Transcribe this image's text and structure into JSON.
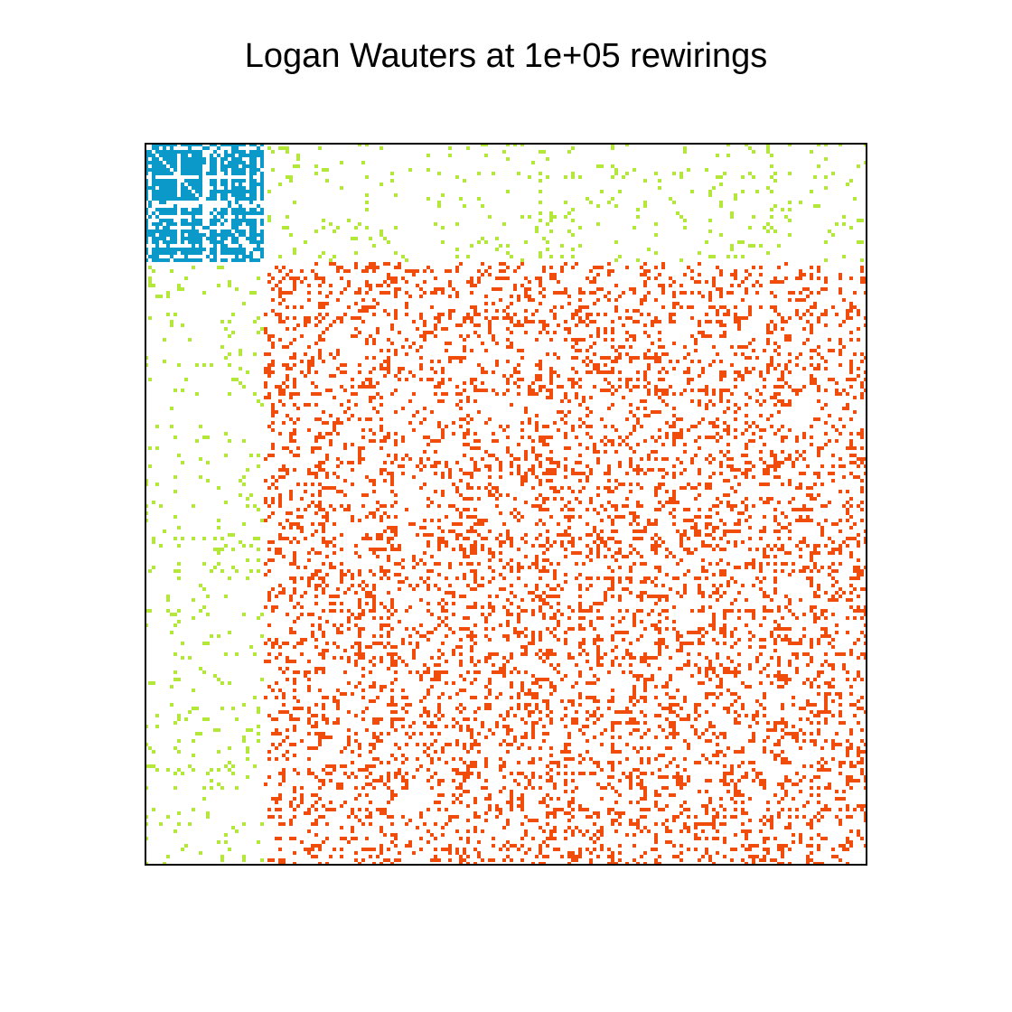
{
  "title": "Logan Wauters at 1e+05 rewirings",
  "chart_data": {
    "type": "heatmap",
    "title": "Logan Wauters at 1e+05 rewirings",
    "xlabel": "",
    "ylabel": "",
    "grid": false,
    "legend": "none",
    "n_nodes": 200,
    "background_color": "#ffffff",
    "frame_color": "#000000",
    "blocks": [
      {
        "group": "A",
        "range": [
          1,
          33
        ],
        "within_color": "#0a99c9",
        "within_density": 0.62,
        "structure": "dense-checkered"
      },
      {
        "group": "B",
        "range": [
          34,
          200
        ],
        "within_color": "#f04c0c",
        "within_density": 0.22,
        "structure": "sparse-random"
      }
    ],
    "between_blocks": {
      "color": "#b3e83a",
      "density": 0.07
    },
    "diagonal": "empty",
    "symmetric": true
  }
}
